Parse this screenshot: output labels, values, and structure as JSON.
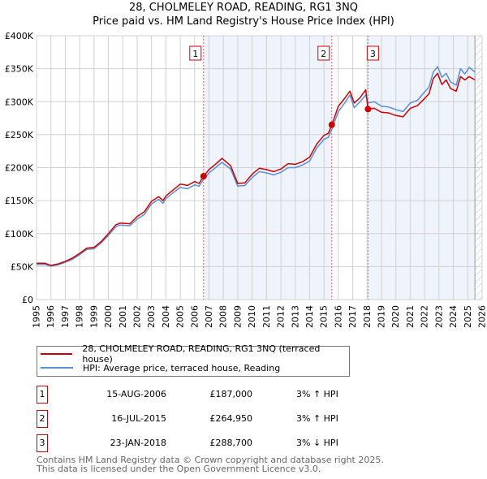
{
  "chart_data": {
    "type": "line",
    "title": "28, CHOLMELEY ROAD, READING, RG1 3NQ",
    "subtitle": "Price paid vs. HM Land Registry's House Price Index (HPI)",
    "xlim": [
      1995,
      2026
    ],
    "ylim": [
      0,
      400000
    ],
    "x_ticks": [
      "1995",
      "1996",
      "1997",
      "1998",
      "1999",
      "2000",
      "2001",
      "2002",
      "2003",
      "2004",
      "2005",
      "2006",
      "2007",
      "2008",
      "2009",
      "2010",
      "2011",
      "2012",
      "2013",
      "2014",
      "2015",
      "2016",
      "2017",
      "2018",
      "2019",
      "2020",
      "2021",
      "2022",
      "2023",
      "2024",
      "2025",
      "2026"
    ],
    "y_ticks": [
      {
        "v": 0,
        "label": "£0"
      },
      {
        "v": 50000,
        "label": "£50K"
      },
      {
        "v": 100000,
        "label": "£100K"
      },
      {
        "v": 150000,
        "label": "£150K"
      },
      {
        "v": 200000,
        "label": "£200K"
      },
      {
        "v": 250000,
        "label": "£250K"
      },
      {
        "v": 300000,
        "label": "£300K"
      },
      {
        "v": 350000,
        "label": "£350K"
      },
      {
        "v": 400000,
        "label": "£400K"
      }
    ],
    "grid": true,
    "shaded_ranges": [
      [
        2006.62,
        2015.54
      ],
      [
        2018.06,
        2025.5
      ]
    ],
    "hatched_from": 2025.5,
    "x": [
      1995,
      1995.6,
      1996,
      1996.5,
      1997,
      1997.5,
      1998,
      1998.5,
      1999,
      1999.5,
      2000,
      2000.5,
      2000.8,
      2001.5,
      2002,
      2002.5,
      2003,
      2003.5,
      2003.8,
      2004,
      2004.5,
      2005,
      2005.5,
      2006,
      2006.3,
      2006.62,
      2007,
      2007.5,
      2007.9,
      2008.5,
      2009,
      2009.5,
      2010,
      2010.5,
      2011,
      2011.5,
      2012,
      2012.5,
      2013,
      2013.5,
      2014,
      2014.5,
      2015,
      2015.3,
      2015.54,
      2016,
      2016.5,
      2016.8,
      2017.1,
      2017.5,
      2017.9,
      2018.06,
      2018.5,
      2019,
      2019.5,
      2020,
      2020.5,
      2021,
      2021.5,
      2022,
      2022.3,
      2022.6,
      2022.9,
      2023.2,
      2023.5,
      2023.8,
      2024.2,
      2024.5,
      2024.8,
      2025.1,
      2025.5
    ],
    "series": [
      {
        "name": "28, CHOLMELEY ROAD, READING, RG1 3NQ (terraced house)",
        "color": "#cc0000",
        "values": [
          55000,
          55000,
          52000,
          54000,
          58000,
          63000,
          70000,
          78000,
          79000,
          88000,
          100000,
          113000,
          116000,
          115000,
          126000,
          133000,
          149000,
          156000,
          150000,
          157000,
          166000,
          175000,
          173000,
          179000,
          176000,
          187000,
          197000,
          206000,
          214000,
          203000,
          176000,
          177000,
          190000,
          199000,
          197000,
          194000,
          198000,
          206000,
          205000,
          209000,
          216000,
          236000,
          249000,
          252000,
          264950,
          293000,
          307000,
          316000,
          298000,
          306000,
          318000,
          288700,
          290000,
          284000,
          283000,
          279000,
          277000,
          290000,
          294000,
          305000,
          312000,
          335000,
          343000,
          326000,
          333000,
          320000,
          316000,
          338000,
          333000,
          338000,
          333000
        ]
      },
      {
        "name": "HPI: Average price, terraced house, Reading",
        "color": "#5b8fd6",
        "values": [
          53000,
          53000,
          51000,
          52500,
          56500,
          61000,
          68000,
          76000,
          77000,
          86000,
          97000,
          110000,
          113000,
          112000,
          122000,
          129000,
          145000,
          152000,
          146000,
          153000,
          162000,
          170000,
          168000,
          174000,
          172000,
          182000,
          192000,
          201000,
          208000,
          198000,
          172000,
          173000,
          185000,
          194000,
          192000,
          189000,
          193000,
          200000,
          200000,
          204000,
          210000,
          230000,
          243000,
          246000,
          258000,
          285000,
          300000,
          310000,
          291000,
          300000,
          310000,
          298000,
          300000,
          293000,
          292000,
          288000,
          285000,
          298000,
          302000,
          315000,
          322000,
          345000,
          353000,
          337000,
          343000,
          330000,
          325000,
          350000,
          342000,
          352000,
          345000
        ]
      }
    ],
    "sales": [
      {
        "label": "1",
        "x": 2006.62,
        "value": 187000
      },
      {
        "label": "2",
        "x": 2015.54,
        "value": 264950
      },
      {
        "label": "3",
        "x": 2018.06,
        "value": 288700
      }
    ]
  },
  "legend": [
    {
      "label": "28, CHOLMELEY ROAD, READING, RG1 3NQ (terraced house)",
      "color": "#cc0000"
    },
    {
      "label": "HPI: Average price, terraced house, Reading",
      "color": "#5b8fd6"
    }
  ],
  "table": [
    {
      "num": "1",
      "date": "15-AUG-2006",
      "price": "£187,000",
      "hpi": "3% ↑ HPI"
    },
    {
      "num": "2",
      "date": "16-JUL-2015",
      "price": "£264,950",
      "hpi": "3% ↑ HPI"
    },
    {
      "num": "3",
      "date": "23-JAN-2018",
      "price": "£288,700",
      "hpi": "3% ↓ HPI"
    }
  ],
  "footer": {
    "line1": "Contains HM Land Registry data © Crown copyright and database right 2025.",
    "line2": "This data is licensed under the Open Government Licence v3.0."
  }
}
